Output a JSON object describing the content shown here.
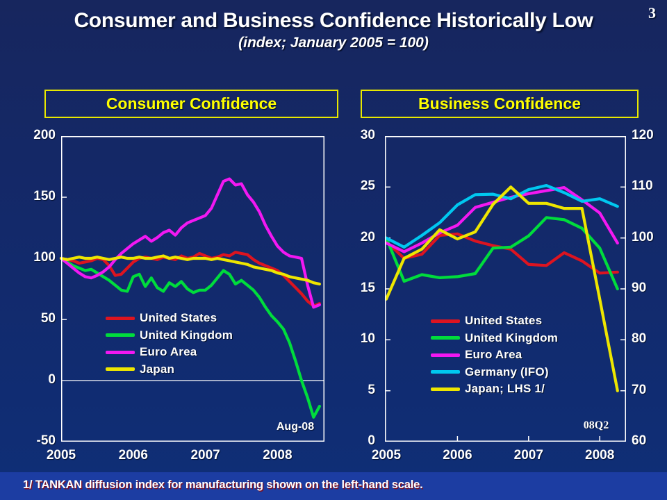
{
  "slide": {
    "title": "Consumer and Business Confidence Historically Low",
    "subtitle": "(index; January 2005 = 100)",
    "footnote": "1/  TANKAN diffusion index for manufacturing shown on the left-hand scale.",
    "page_number": "3",
    "colors": {
      "background": "#13296a",
      "footer_band": "#1c3da2",
      "accent_yellow": "#ffff00",
      "text": "#ffffff",
      "footnote_shadow": "#7c1024"
    }
  },
  "chart_data": [
    {
      "type": "line",
      "title": "Consumer Confidence",
      "x_axis": {
        "tick_labels": [
          "2005",
          "2006",
          "2007",
          "2008"
        ],
        "frequency": "monthly",
        "start": "Jan 2005",
        "end": "Aug 2008"
      },
      "y_axis": {
        "ticks": [
          200,
          150,
          100,
          50,
          0,
          -50
        ],
        "range": [
          -50,
          200
        ],
        "zero_line": true
      },
      "annotation": "Aug-08",
      "legend_position": "inside-bottom-left",
      "series": [
        {
          "name": "United States",
          "color": "#dd1420",
          "values": [
            100,
            99,
            98,
            96,
            97,
            98,
            100,
            99,
            94,
            86,
            87,
            92,
            97,
            100,
            101,
            100,
            99,
            101,
            100,
            99,
            102,
            100,
            101,
            104,
            102,
            100,
            101,
            103,
            102,
            105,
            104,
            103,
            99,
            96,
            94,
            92,
            90,
            86,
            81,
            76,
            71,
            65,
            61,
            63
          ]
        },
        {
          "name": "United Kingdom",
          "color": "#00dc3c",
          "values": [
            100,
            97,
            94,
            92,
            90,
            91,
            88,
            85,
            82,
            78,
            74,
            73,
            85,
            87,
            77,
            84,
            76,
            73,
            80,
            77,
            81,
            75,
            72,
            74,
            74,
            78,
            84,
            90,
            87,
            79,
            82,
            78,
            74,
            68,
            60,
            53,
            48,
            42,
            31,
            16,
            0,
            -14,
            -30,
            -21
          ]
        },
        {
          "name": "Euro Area",
          "color": "#f218f2",
          "values": [
            100,
            96,
            92,
            88,
            85,
            84,
            86,
            89,
            93,
            99,
            104,
            108,
            112,
            115,
            118,
            114,
            117,
            121,
            123,
            119,
            125,
            129,
            131,
            133,
            135,
            141,
            152,
            163,
            165,
            160,
            161,
            152,
            146,
            138,
            127,
            118,
            110,
            105,
            102,
            101,
            100,
            78,
            60,
            62
          ]
        },
        {
          "name": "Japan",
          "color": "#eee600",
          "values": [
            100,
            99,
            100,
            101,
            100,
            100,
            101,
            100,
            99,
            100,
            101,
            100,
            100,
            101,
            100,
            100,
            101,
            102,
            100,
            101,
            100,
            99,
            100,
            100,
            100,
            99,
            100,
            99,
            98,
            97,
            96,
            95,
            93,
            92,
            91,
            90,
            88,
            87,
            85,
            84,
            83,
            82,
            80,
            79
          ]
        }
      ]
    },
    {
      "type": "line",
      "title": "Business Confidence",
      "x_axis": {
        "tick_labels": [
          "2005",
          "2006",
          "2007",
          "2008"
        ],
        "frequency": "quarterly",
        "start": "2005Q1",
        "end": "2008Q2"
      },
      "y_axis_left": {
        "ticks": [
          30,
          25,
          20,
          15,
          10,
          5,
          0
        ],
        "range": [
          0,
          30
        ]
      },
      "y_axis_right": {
        "ticks": [
          120,
          110,
          100,
          90,
          80,
          70,
          60
        ],
        "range": [
          60,
          120
        ]
      },
      "annotation": "08Q2",
      "legend_position": "inside-bottom-left",
      "series": [
        {
          "name": "United States",
          "color": "#dd1420",
          "scale": "right",
          "values": [
            99.3,
            96,
            96.8,
            100.5,
            100.8,
            99.4,
            98.5,
            97.8,
            94.8,
            94.6,
            97.1,
            95.5,
            93.1,
            93.3
          ]
        },
        {
          "name": "United Kingdom",
          "color": "#00dc3c",
          "scale": "right",
          "values": [
            100,
            91.5,
            92.8,
            92.2,
            92.4,
            93,
            98,
            98.2,
            100.4,
            104,
            103.6,
            101.9,
            98,
            90
          ]
        },
        {
          "name": "Euro Area",
          "color": "#f218f2",
          "scale": "right",
          "values": [
            99,
            97.3,
            99,
            101,
            102.5,
            106,
            107,
            108,
            108.7,
            109.3,
            109.9,
            107.5,
            104.9,
            99
          ]
        },
        {
          "name": "Germany (IFO)",
          "color": "#00c8f0",
          "scale": "right",
          "values": [
            100,
            98.2,
            100.5,
            103,
            106.5,
            108.5,
            108.6,
            107.7,
            109.5,
            110.3,
            108.9,
            107.2,
            107.7,
            106.2
          ]
        },
        {
          "name": "Japan; LHS 1/",
          "color": "#eee600",
          "scale": "left",
          "values": [
            14,
            18,
            18.9,
            20.8,
            19.9,
            20.6,
            23.3,
            25,
            23.4,
            23.4,
            22.9,
            22.9,
            14,
            5
          ]
        }
      ]
    }
  ]
}
